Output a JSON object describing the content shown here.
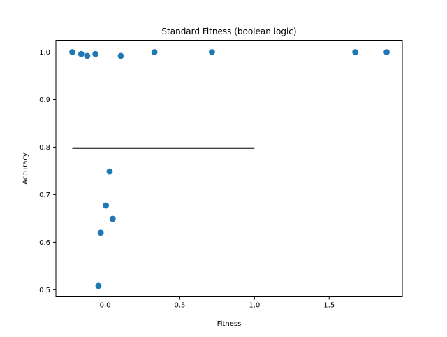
{
  "chart_data": {
    "type": "scatter",
    "title": "Standard Fitness (boolean logic)",
    "xlabel": "Fitness",
    "ylabel": "Accuracy",
    "xlim": [
      -0.33,
      1.99
    ],
    "ylim": [
      0.485,
      1.025
    ],
    "xticks": [
      0.0,
      0.5,
      1.0,
      1.5
    ],
    "xtick_labels": [
      "0.0",
      "0.5",
      "1.0",
      "1.5"
    ],
    "yticks": [
      0.5,
      0.6,
      0.7,
      0.8,
      0.9,
      1.0
    ],
    "ytick_labels": [
      "0.5",
      "0.6",
      "0.7",
      "0.8",
      "0.9",
      "1.0"
    ],
    "grid": false,
    "point_color": "#1f77b4",
    "line_color": "#000000",
    "points": [
      {
        "x": -0.22,
        "y": 1.0
      },
      {
        "x": -0.16,
        "y": 0.996
      },
      {
        "x": -0.12,
        "y": 0.992
      },
      {
        "x": -0.065,
        "y": 0.996
      },
      {
        "x": 0.105,
        "y": 0.992
      },
      {
        "x": 0.33,
        "y": 1.0
      },
      {
        "x": 0.715,
        "y": 1.0
      },
      {
        "x": 1.675,
        "y": 1.0
      },
      {
        "x": 1.885,
        "y": 1.0
      },
      {
        "x": 0.03,
        "y": 0.749
      },
      {
        "x": 0.005,
        "y": 0.677
      },
      {
        "x": 0.05,
        "y": 0.649
      },
      {
        "x": -0.03,
        "y": 0.62
      },
      {
        "x": -0.045,
        "y": 0.508
      }
    ],
    "hline": {
      "y": 0.798,
      "xmin": -0.22,
      "xmax": 1.0
    }
  }
}
